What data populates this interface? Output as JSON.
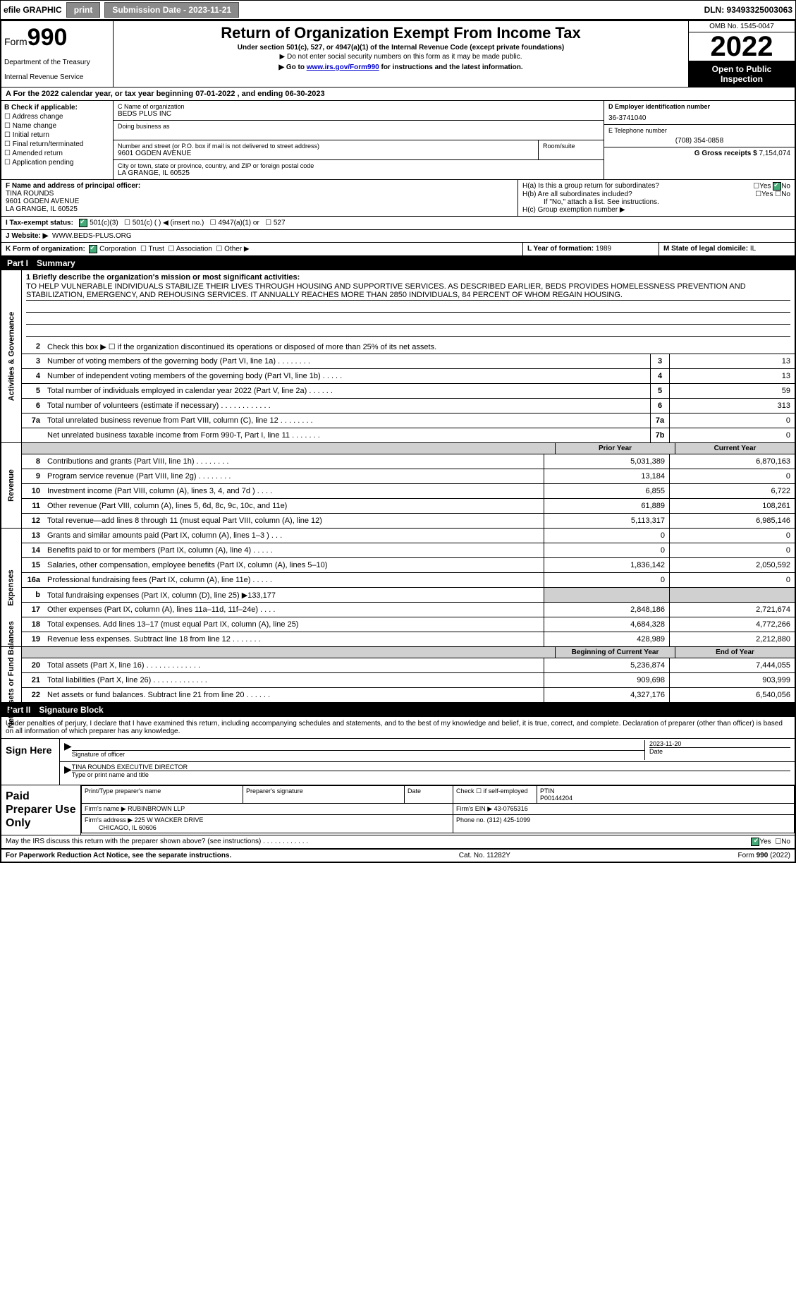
{
  "topbar": {
    "efile": "efile GRAPHIC",
    "print": "print",
    "submission": "Submission Date - 2023-11-21",
    "dln": "DLN: 93493325003063"
  },
  "header": {
    "form_prefix": "Form",
    "form_number": "990",
    "dept": "Department of the Treasury",
    "irs": "Internal Revenue Service",
    "title": "Return of Organization Exempt From Income Tax",
    "sub1": "Under section 501(c), 527, or 4947(a)(1) of the Internal Revenue Code (except private foundations)",
    "sub2": "▶ Do not enter social security numbers on this form as it may be made public.",
    "sub3_pre": "▶ Go to ",
    "sub3_link": "www.irs.gov/Form990",
    "sub3_post": " for instructions and the latest information.",
    "omb": "OMB No. 1545-0047",
    "year": "2022",
    "open": "Open to Public Inspection"
  },
  "row_a": "A For the 2022 calendar year, or tax year beginning 07-01-2022    , and ending 06-30-2023",
  "col_b": {
    "header": "B Check if applicable:",
    "items": [
      "Address change",
      "Name change",
      "Initial return",
      "Final return/terminated",
      "Amended return",
      "Application pending"
    ]
  },
  "col_c": {
    "name_lbl": "C Name of organization",
    "name": "BEDS PLUS INC",
    "dba_lbl": "Doing business as",
    "addr_lbl": "Number and street (or P.O. box if mail is not delivered to street address)",
    "room_lbl": "Room/suite",
    "addr": "9601 OGDEN AVENUE",
    "city_lbl": "City or town, state or province, country, and ZIP or foreign postal code",
    "city": "LA GRANGE, IL  60525"
  },
  "col_d": {
    "ein_lbl": "D Employer identification number",
    "ein": "36-3741040",
    "phone_lbl": "E Telephone number",
    "phone": "(708) 354-0858",
    "gross_lbl": "G Gross receipts $",
    "gross": "7,154,074"
  },
  "row_f": {
    "lbl": "F Name and address of principal officer:",
    "name": "TINA ROUNDS",
    "addr1": "9601 OGDEN AVENUE",
    "addr2": "LA GRANGE, IL  60525"
  },
  "row_h": {
    "ha": "H(a)  Is this a group return for subordinates?",
    "hb": "H(b)  Are all subordinates included?",
    "hb_note": "If \"No,\" attach a list. See instructions.",
    "hc": "H(c)  Group exemption number ▶",
    "yes": "Yes",
    "no": "No"
  },
  "row_i": {
    "lbl": "I   Tax-exempt status:",
    "opts": [
      "501(c)(3)",
      "501(c) (  ) ◀ (insert no.)",
      "4947(a)(1) or",
      "527"
    ]
  },
  "row_j": {
    "lbl": "J   Website: ▶",
    "val": "WWW.BEDS-PLUS.ORG"
  },
  "row_k": {
    "lbl": "K Form of organization:",
    "opts": [
      "Corporation",
      "Trust",
      "Association",
      "Other ▶"
    ]
  },
  "row_l": {
    "lbl": "L Year of formation:",
    "val": "1989"
  },
  "row_m": {
    "lbl": "M State of legal domicile:",
    "val": "IL"
  },
  "part1": {
    "num": "Part I",
    "title": "Summary"
  },
  "mission": {
    "lbl": "1   Briefly describe the organization's mission or most significant activities:",
    "text": "TO HELP VULNERABLE INDIVIDUALS STABILIZE THEIR LIVES THROUGH HOUSING AND SUPPORTIVE SERVICES. AS DESCRIBED EARLIER, BEDS PROVIDES HOMELESSNESS PREVENTION AND STABILIZATION, EMERGENCY, AND REHOUSING SERVICES. IT ANNUALLY REACHES MORE THAN 2850 INDIVIDUALS, 84 PERCENT OF WHOM REGAIN HOUSING."
  },
  "line2": "Check this box ▶ ☐ if the organization discontinued its operations or disposed of more than 25% of its net assets.",
  "gov_lines": [
    {
      "n": "3",
      "t": "Number of voting members of the governing body (Part VI, line 1a)   .    .    .    .    .    .    .    .",
      "box": "3",
      "v": "13"
    },
    {
      "n": "4",
      "t": "Number of independent voting members of the governing body (Part VI, line 1b)   .    .    .    .    .",
      "box": "4",
      "v": "13"
    },
    {
      "n": "5",
      "t": "Total number of individuals employed in calendar year 2022 (Part V, line 2a)   .    .    .    .    .    .",
      "box": "5",
      "v": "59"
    },
    {
      "n": "6",
      "t": "Total number of volunteers (estimate if necessary)   .    .    .    .    .    .    .    .    .    .    .    .",
      "box": "6",
      "v": "313"
    },
    {
      "n": "7a",
      "t": "Total unrelated business revenue from Part VIII, column (C), line 12    .    .    .    .    .    .    .    .",
      "box": "7a",
      "v": "0"
    },
    {
      "n": "",
      "t": "Net unrelated business taxable income from Form 990-T, Part I, line 11    .    .    .    .    .    .    .",
      "box": "7b",
      "v": "0"
    }
  ],
  "cols": {
    "prior": "Prior Year",
    "current": "Current Year"
  },
  "rev_lines": [
    {
      "n": "8",
      "t": "Contributions and grants (Part VIII, line 1h)   .    .    .    .    .    .    .    .",
      "p": "5,031,389",
      "c": "6,870,163"
    },
    {
      "n": "9",
      "t": "Program service revenue (Part VIII, line 2g)   .    .    .    .    .    .    .    .",
      "p": "13,184",
      "c": "0"
    },
    {
      "n": "10",
      "t": "Investment income (Part VIII, column (A), lines 3, 4, and 7d )    .    .    .    .",
      "p": "6,855",
      "c": "6,722"
    },
    {
      "n": "11",
      "t": "Other revenue (Part VIII, column (A), lines 5, 6d, 8c, 9c, 10c, and 11e)",
      "p": "61,889",
      "c": "108,261"
    },
    {
      "n": "12",
      "t": "Total revenue—add lines 8 through 11 (must equal Part VIII, column (A), line 12)",
      "p": "5,113,317",
      "c": "6,985,146"
    }
  ],
  "exp_lines": [
    {
      "n": "13",
      "t": "Grants and similar amounts paid (Part IX, column (A), lines 1–3 )   .    .    .",
      "p": "0",
      "c": "0"
    },
    {
      "n": "14",
      "t": "Benefits paid to or for members (Part IX, column (A), line 4)    .    .    .    .    .",
      "p": "0",
      "c": "0"
    },
    {
      "n": "15",
      "t": "Salaries, other compensation, employee benefits (Part IX, column (A), lines 5–10)",
      "p": "1,836,142",
      "c": "2,050,592"
    },
    {
      "n": "16a",
      "t": "Professional fundraising fees (Part IX, column (A), line 11e)    .    .    .    .    .",
      "p": "0",
      "c": "0"
    },
    {
      "n": "b",
      "t": "Total fundraising expenses (Part IX, column (D), line 25) ▶133,177",
      "p": "",
      "c": "",
      "grey": true
    },
    {
      "n": "17",
      "t": "Other expenses (Part IX, column (A), lines 11a–11d, 11f–24e)    .    .    .    .",
      "p": "2,848,186",
      "c": "2,721,674"
    },
    {
      "n": "18",
      "t": "Total expenses. Add lines 13–17 (must equal Part IX, column (A), line 25)",
      "p": "4,684,328",
      "c": "4,772,266"
    },
    {
      "n": "19",
      "t": "Revenue less expenses. Subtract line 18 from line 12    .    .    .    .    .    .    .",
      "p": "428,989",
      "c": "2,212,880"
    }
  ],
  "cols2": {
    "begin": "Beginning of Current Year",
    "end": "End of Year"
  },
  "net_lines": [
    {
      "n": "20",
      "t": "Total assets (Part X, line 16)    .    .    .    .    .    .    .    .    .    .    .    .    .",
      "p": "5,236,874",
      "c": "7,444,055"
    },
    {
      "n": "21",
      "t": "Total liabilities (Part X, line 26)    .    .    .    .    .    .    .    .    .    .    .    .    .",
      "p": "909,698",
      "c": "903,999"
    },
    {
      "n": "22",
      "t": "Net assets or fund balances. Subtract line 21 from line 20    .    .    .    .    .    .",
      "p": "4,327,176",
      "c": "6,540,056"
    }
  ],
  "part2": {
    "num": "Part II",
    "title": "Signature Block"
  },
  "sig_instr": "Under penalties of perjury, I declare that I have examined this return, including accompanying schedules and statements, and to the best of my knowledge and belief, it is true, correct, and complete. Declaration of preparer (other than officer) is based on all information of which preparer has any knowledge.",
  "sign": {
    "here": "Sign Here",
    "sig_lbl": "Signature of officer",
    "date_lbl": "Date",
    "date": "2023-11-20",
    "name": "TINA ROUNDS  EXECUTIVE DIRECTOR",
    "name_lbl": "Type or print name and title"
  },
  "prep": {
    "title": "Paid Preparer Use Only",
    "h1": "Print/Type preparer's name",
    "h2": "Preparer's signature",
    "h3": "Date",
    "h4_pre": "Check ☐ if self-employed",
    "h5": "PTIN",
    "ptin": "P00144204",
    "firm_lbl": "Firm's name    ▶",
    "firm": "RUBINBROWN LLP",
    "ein_lbl": "Firm's EIN ▶",
    "ein": "43-0765316",
    "addr_lbl": "Firm's address ▶",
    "addr1": "225 W WACKER DRIVE",
    "addr2": "CHICAGO, IL  60606",
    "phone_lbl": "Phone no.",
    "phone": "(312) 425-1099"
  },
  "discuss": "May the IRS discuss this return with the preparer shown above? (see instructions)    .    .    .    .    .    .    .    .    .    .    .    .",
  "discuss_yes": "Yes",
  "discuss_no": "No",
  "footer": {
    "left": "For Paperwork Reduction Act Notice, see the separate instructions.",
    "mid": "Cat. No. 11282Y",
    "right": "Form 990 (2022)"
  },
  "vtabs": {
    "gov": "Activities & Governance",
    "rev": "Revenue",
    "exp": "Expenses",
    "net": "Net Assets or Fund Balances"
  }
}
